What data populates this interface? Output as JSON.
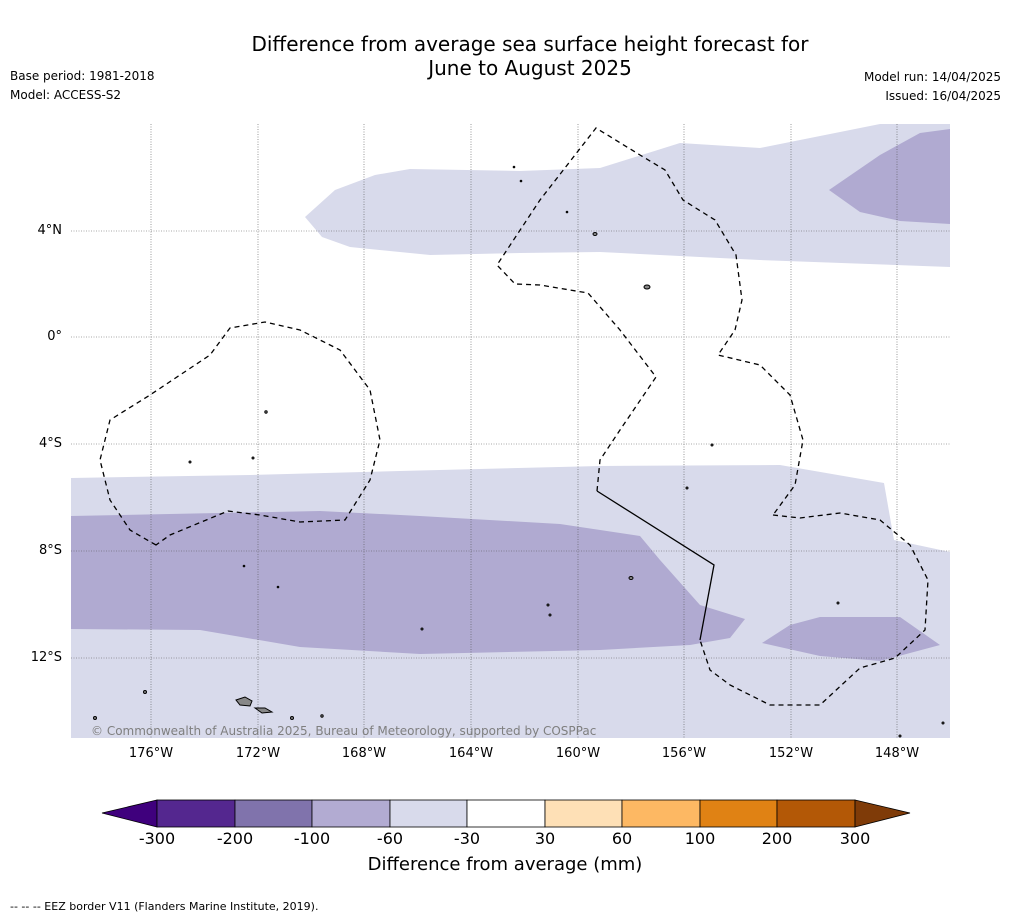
{
  "title_line1": "Difference from average sea surface height forecast for",
  "title_line2": "June to August 2025",
  "base_period": "Base period: 1981-2018",
  "model": "Model: ACCESS-S2",
  "model_run": "Model run: 14/04/2025",
  "issued": "Issued: 16/04/2025",
  "copyright": "© Commonwealth of Australia 2025, Bureau of Meteorology, supported by COSPPac",
  "footer": "--  --  -- EEZ border V11 (Flanders Marine Institute, 2019).",
  "lat_labels": [
    "4°N",
    "0°",
    "4°S",
    "8°S",
    "12°S"
  ],
  "lon_labels": [
    "176°W",
    "172°W",
    "168°W",
    "164°W",
    "160°W",
    "156°W",
    "152°W",
    "148°W"
  ],
  "colorbar": {
    "label": "Difference from average (mm)",
    "ticks": [
      "-300",
      "-200",
      "-100",
      "-60",
      "-30",
      "30",
      "60",
      "100",
      "200",
      "300"
    ],
    "colors": [
      "#3f007d",
      "#54278f",
      "#8073ac",
      "#b2abd2",
      "#d8daeb",
      "#ffffff",
      "#fee0b6",
      "#fdb863",
      "#e08214",
      "#b35806",
      "#7f3b08"
    ]
  },
  "map_colors": {
    "light_purple": "#d8daeb",
    "mid_purple": "#b0aad1",
    "island": "#888888"
  }
}
